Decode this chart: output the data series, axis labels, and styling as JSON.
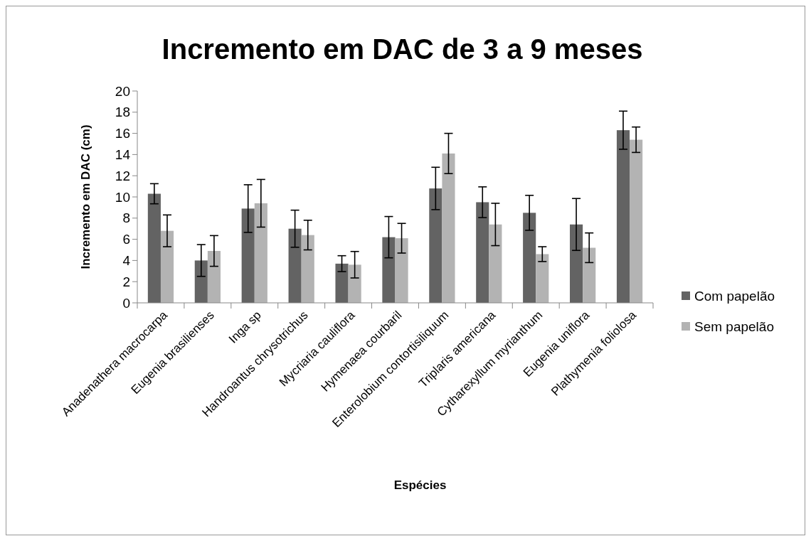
{
  "chart_data": {
    "type": "bar",
    "title": "Incremento em DAC de 3 a 9 meses",
    "xlabel": "Espécies",
    "ylabel": "Incremento em DAC (cm)",
    "categories": [
      "Anadenathera macrocarpa",
      "Eugenia brasilienses",
      "Inga sp",
      "Handroantus chrysotrichus",
      "Mycriaria cauliflora",
      "Hymenaea courbaril",
      "Enterolobium contortisiliquum",
      "Triplaris americana",
      "Cytharexyllum myrianthum",
      "Eugenia uniflora",
      "Plathymenia foliolosa"
    ],
    "series": [
      {
        "name": "Com papelão",
        "color": "#636363",
        "values": [
          10.3,
          4.0,
          8.9,
          7.0,
          3.7,
          6.2,
          10.8,
          9.5,
          8.5,
          7.4,
          16.3
        ],
        "errors": [
          0.95,
          1.5,
          2.25,
          1.75,
          0.75,
          1.95,
          2.0,
          1.45,
          1.65,
          2.45,
          1.8
        ]
      },
      {
        "name": "Sem papelão",
        "color": "#b3b3b3",
        "values": [
          6.8,
          4.9,
          9.4,
          6.4,
          3.6,
          6.1,
          14.1,
          7.4,
          4.6,
          5.2,
          15.4
        ],
        "errors": [
          1.5,
          1.45,
          2.25,
          1.4,
          1.25,
          1.4,
          1.9,
          2.0,
          0.7,
          1.4,
          1.2
        ]
      }
    ],
    "ylim": [
      0,
      20
    ],
    "yticks": [
      0,
      2,
      4,
      6,
      8,
      10,
      12,
      14,
      16,
      18,
      20
    ],
    "grid": false,
    "legend": "right"
  }
}
